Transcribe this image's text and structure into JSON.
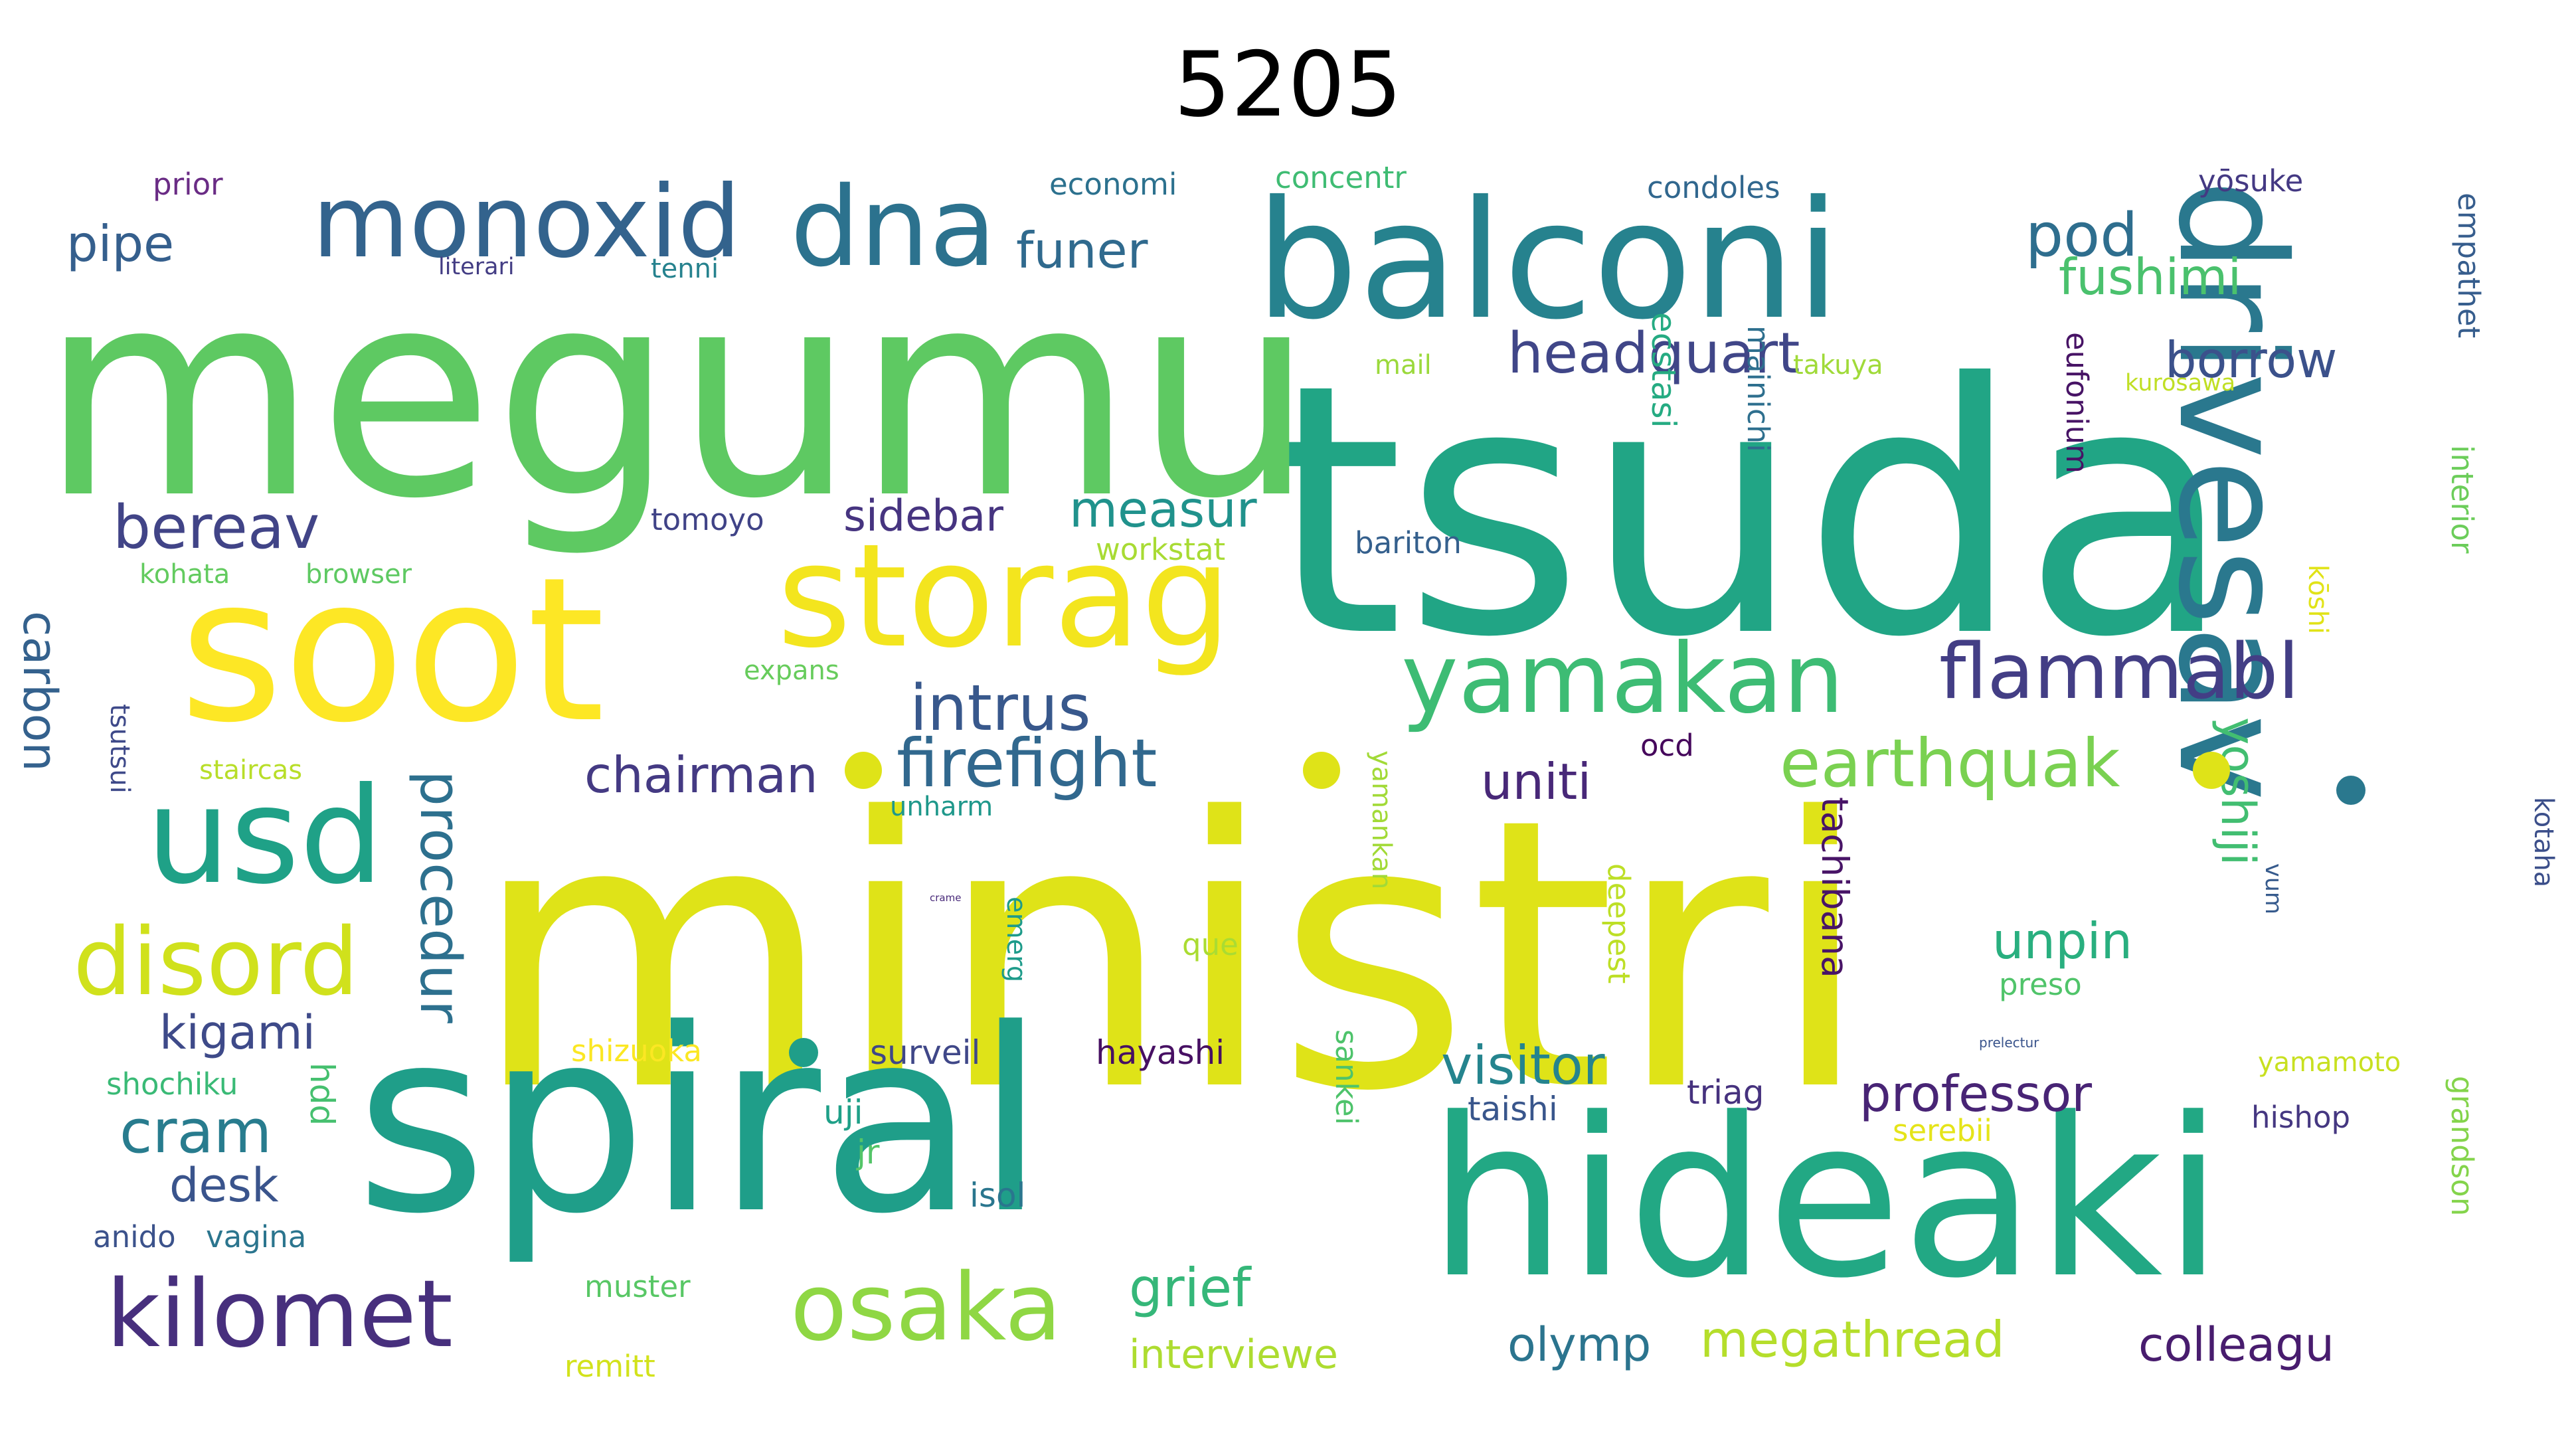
{
  "title": "5205",
  "palette": {
    "background": "#ffffff",
    "colormap": "viridis"
  },
  "words": [
    {
      "text": "ministri",
      "color": "#dfe318"
    },
    {
      "text": "tsuda",
      "color": "#21a585"
    },
    {
      "text": "megumu",
      "color": "#5ec962"
    },
    {
      "text": "spiral",
      "color": "#1f9e89"
    },
    {
      "text": "hideaki",
      "color": "#22a884"
    },
    {
      "text": "soot",
      "color": "#fde725"
    },
    {
      "text": "balconi",
      "color": "#26828e"
    },
    {
      "text": "drivesav",
      "color": "#2a788e"
    },
    {
      "text": "storag",
      "color": "#f3e51e"
    },
    {
      "text": "usd",
      "color": "#1fa187"
    },
    {
      "text": "dna",
      "color": "#2c728e"
    },
    {
      "text": "monoxid",
      "color": "#33638d"
    },
    {
      "text": "yamakan",
      "color": "#3dbc74"
    },
    {
      "text": "disord",
      "color": "#d0e11c"
    },
    {
      "text": "osaka",
      "color": "#8fd744"
    },
    {
      "text": "kilomet",
      "color": "#472f7d"
    },
    {
      "text": "flammabl",
      "color": "#433e85"
    },
    {
      "text": "bereav",
      "color": "#414487"
    },
    {
      "text": "intrus",
      "color": "#38588c"
    },
    {
      "text": "firefight",
      "color": "#31688e"
    },
    {
      "text": "earthquak",
      "color": "#7ad151"
    },
    {
      "text": "headquart",
      "color": "#404688"
    },
    {
      "text": "pod",
      "color": "#2e6e8e"
    },
    {
      "text": "fushimi",
      "color": "#4ac16d"
    },
    {
      "text": "borrow",
      "color": "#3b518b"
    },
    {
      "text": "chairman",
      "color": "#443a83"
    },
    {
      "text": "uniti",
      "color": "#482878"
    },
    {
      "text": "pipe",
      "color": "#355f8d"
    },
    {
      "text": "funer",
      "color": "#306a8e"
    },
    {
      "text": "measur",
      "color": "#20928c"
    },
    {
      "text": "sidebar",
      "color": "#463480"
    },
    {
      "text": "cram",
      "color": "#287c8e"
    },
    {
      "text": "kigami",
      "color": "#3e4a89"
    },
    {
      "text": "desk",
      "color": "#3a548c"
    },
    {
      "text": "procedur",
      "color": "#2d708e"
    },
    {
      "text": "carbon",
      "color": "#34618d"
    },
    {
      "text": "grief",
      "color": "#35b779"
    },
    {
      "text": "visitor",
      "color": "#25848e"
    },
    {
      "text": "professor",
      "color": "#482475"
    },
    {
      "text": "unpin",
      "color": "#29af7f"
    },
    {
      "text": "yoshiji",
      "color": "#42be71"
    },
    {
      "text": "olymp",
      "color": "#2b748e"
    },
    {
      "text": "megathread",
      "color": "#b5de2b"
    },
    {
      "text": "colleagu",
      "color": "#481c6e"
    },
    {
      "text": "interviewe",
      "color": "#addc30"
    },
    {
      "text": "tachibana",
      "color": "#481467"
    },
    {
      "text": "ecstasi",
      "color": "#25ab82"
    },
    {
      "text": "hayashi",
      "color": "#471063"
    },
    {
      "text": "surveil",
      "color": "#3f4788"
    },
    {
      "text": "taishi",
      "color": "#39568c"
    },
    {
      "text": "triag",
      "color": "#46327e"
    },
    {
      "text": "mainichi",
      "color": "#2e6f8e"
    },
    {
      "text": "eufonium",
      "color": "#471365"
    },
    {
      "text": "empathet",
      "color": "#365d8d"
    },
    {
      "text": "interior",
      "color": "#6ccd5a"
    },
    {
      "text": "grandson",
      "color": "#84d44b"
    },
    {
      "text": "kotaha",
      "color": "#3c4f8a"
    },
    {
      "text": "hishop",
      "color": "#453781"
    },
    {
      "text": "yamamoto",
      "color": "#c8e020"
    },
    {
      "text": "serebii",
      "color": "#e5e419"
    },
    {
      "text": "preso",
      "color": "#50c46a"
    },
    {
      "text": "deepest",
      "color": "#bddf26"
    },
    {
      "text": "sankei",
      "color": "#4ec36b"
    },
    {
      "text": "yamankan",
      "color": "#a2da37"
    },
    {
      "text": "emerg",
      "color": "#1e9b8a"
    },
    {
      "text": "que",
      "color": "#aadc32"
    },
    {
      "text": "isol",
      "color": "#2a768e"
    },
    {
      "text": "uji",
      "color": "#1fa088"
    },
    {
      "text": "jr",
      "color": "#54c568"
    },
    {
      "text": "muster",
      "color": "#58c765"
    },
    {
      "text": "remitt",
      "color": "#d2e21b"
    },
    {
      "text": "vagina",
      "color": "#2b758e"
    },
    {
      "text": "anido",
      "color": "#3b528b"
    },
    {
      "text": "shochiku",
      "color": "#3aba76"
    },
    {
      "text": "shizuoka",
      "color": "#fbe723"
    },
    {
      "text": "hdd",
      "color": "#46c06f"
    },
    {
      "text": "staircas",
      "color": "#b8de29"
    },
    {
      "text": "tsutsui",
      "color": "#3e4989"
    },
    {
      "text": "kohata",
      "color": "#63cb5f"
    },
    {
      "text": "browser",
      "color": "#5ec962"
    },
    {
      "text": "tomoyo",
      "color": "#404387"
    },
    {
      "text": "workstat",
      "color": "#a8db34"
    },
    {
      "text": "bariton",
      "color": "#35608d"
    },
    {
      "text": "expans",
      "color": "#67cc5c"
    },
    {
      "text": "ocd",
      "color": "#46085c"
    },
    {
      "text": "unharm",
      "color": "#1f988b"
    },
    {
      "text": "mail",
      "color": "#9bd93c"
    },
    {
      "text": "takuya",
      "color": "#a0da39"
    },
    {
      "text": "kurosawa",
      "color": "#c0df25"
    },
    {
      "text": "kōshi",
      "color": "#e1e318"
    },
    {
      "text": "vum",
      "color": "#375b8d"
    },
    {
      "text": "economi",
      "color": "#2c718e"
    },
    {
      "text": "concentr",
      "color": "#3fbc73"
    },
    {
      "text": "condoles",
      "color": "#31678e"
    },
    {
      "text": "yōsuke",
      "color": "#443983"
    },
    {
      "text": "prior",
      "color": "#6a2c85"
    },
    {
      "text": "literari",
      "color": "#433d84"
    },
    {
      "text": "tenni",
      "color": "#26828e"
    },
    {
      "text": "prelectur",
      "color": "#3a548c"
    },
    {
      "text": "crame",
      "color": "#482979"
    }
  ]
}
